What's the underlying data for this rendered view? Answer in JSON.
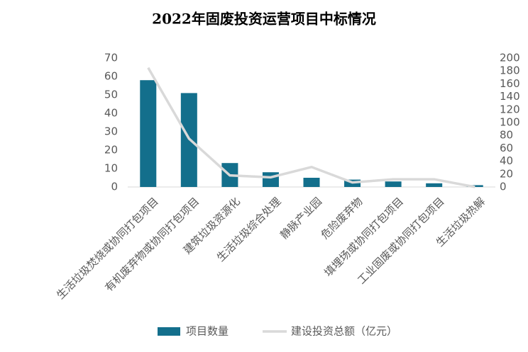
{
  "chart_data": {
    "type": "bar_line",
    "title": "2022年固废投资运营项目中标情况",
    "categories": [
      "生活垃圾焚烧或协同打包项目",
      "有机废弃物或协同打包项目",
      "建筑垃圾资源化",
      "生活垃圾综合处理",
      "静脉产业园",
      "危险废弃物",
      "填埋场或协同打包项目",
      "工业固废或协同打包项目",
      "生活垃圾热解"
    ],
    "series": [
      {
        "name": "项目数量",
        "color": "#136f8c",
        "kind": "bar",
        "values": [
          58,
          51,
          13,
          8,
          5,
          4,
          3,
          2,
          1
        ]
      },
      {
        "name": "建设投资总额（亿元）",
        "color": "#d9d9d9",
        "kind": "line",
        "axis": "y2",
        "values": [
          185,
          75,
          18,
          15,
          31,
          7,
          12,
          12,
          0
        ]
      }
    ],
    "ylim": [
      0,
      70
    ],
    "yticks": [
      0,
      10,
      20,
      30,
      40,
      50,
      60,
      70
    ],
    "y2lim": [
      0,
      200
    ],
    "y2ticks": [
      0,
      20,
      40,
      60,
      80,
      100,
      120,
      140,
      160,
      180,
      200
    ],
    "legend": "bottom",
    "grid": false
  }
}
